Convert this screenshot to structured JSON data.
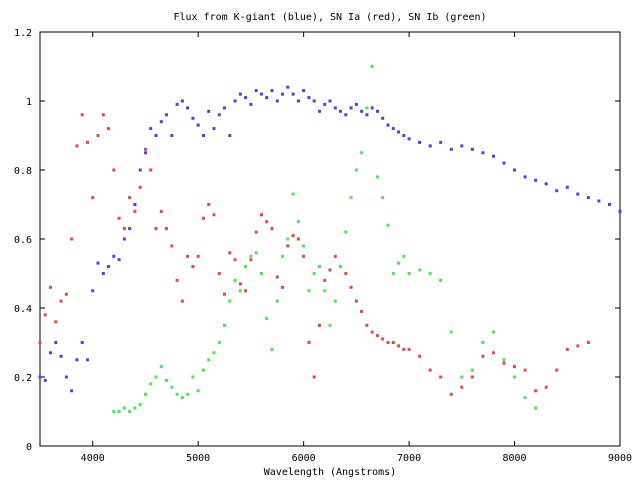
{
  "chart_data": {
    "type": "scatter",
    "title": "Flux from K-giant (blue), SN Ia (red), SN Ib (green)",
    "xlabel": "Wavelength (Angstroms)",
    "ylabel": "",
    "xlim": [
      3500,
      9000
    ],
    "ylim": [
      0,
      1.2
    ],
    "x_ticks": [
      4000,
      5000,
      6000,
      7000,
      8000,
      9000
    ],
    "x_tick_labels": [
      "4000",
      "5000",
      "6000",
      "7000",
      "8000",
      "9000"
    ],
    "y_ticks": [
      0,
      0.2,
      0.4,
      0.6,
      0.8,
      1,
      1.2
    ],
    "y_tick_labels": [
      "0",
      "0.2",
      "0.4",
      "0.6",
      "0.8",
      "1",
      "1.2"
    ],
    "grid": false,
    "legend": "none",
    "series": [
      {
        "color": "#4444ee",
        "x": [
          3500,
          3550,
          3600,
          3650,
          3700,
          3750,
          3800,
          3850,
          3900,
          3950,
          4000,
          4050,
          4100,
          4150,
          4200,
          4250,
          4300,
          4350,
          4400,
          4450,
          4500,
          4550,
          4600,
          4650,
          4700,
          4750,
          4800,
          4850,
          4900,
          4950,
          5000,
          5050,
          5100,
          5150,
          5200,
          5250,
          5300,
          5350,
          5400,
          5450,
          5500,
          5550,
          5600,
          5650,
          5700,
          5750,
          5800,
          5850,
          5900,
          5950,
          6000,
          6050,
          6100,
          6150,
          6200,
          6250,
          6300,
          6350,
          6400,
          6450,
          6500,
          6550,
          6600,
          6650,
          6700,
          6750,
          6800,
          6850,
          6900,
          6950,
          7000,
          7100,
          7200,
          7300,
          7400,
          7500,
          7600,
          7700,
          7800,
          7900,
          8000,
          8100,
          8200,
          8300,
          8400,
          8500,
          8600,
          8700,
          8800,
          8900,
          9000
        ],
        "y": [
          0.2,
          0.19,
          0.27,
          0.3,
          0.26,
          0.2,
          0.16,
          0.25,
          0.3,
          0.25,
          0.45,
          0.53,
          0.5,
          0.52,
          0.55,
          0.54,
          0.6,
          0.63,
          0.7,
          0.8,
          0.85,
          0.92,
          0.9,
          0.94,
          0.96,
          0.9,
          0.99,
          1.0,
          0.98,
          0.95,
          0.93,
          0.9,
          0.97,
          0.92,
          0.96,
          0.98,
          0.9,
          1.0,
          1.02,
          1.01,
          0.99,
          1.03,
          1.02,
          1.01,
          1.03,
          1.0,
          1.02,
          1.04,
          1.02,
          1.0,
          1.03,
          1.01,
          1.0,
          0.97,
          0.99,
          1.0,
          0.98,
          0.97,
          0.96,
          0.98,
          0.99,
          0.97,
          0.96,
          0.98,
          0.97,
          0.95,
          0.93,
          0.92,
          0.91,
          0.9,
          0.89,
          0.88,
          0.87,
          0.88,
          0.86,
          0.87,
          0.86,
          0.85,
          0.84,
          0.82,
          0.8,
          0.78,
          0.77,
          0.76,
          0.74,
          0.75,
          0.73,
          0.72,
          0.71,
          0.7,
          0.68
        ]
      },
      {
        "color": "#ee4444",
        "x": [
          3500,
          3550,
          3600,
          3650,
          3700,
          3750,
          3800,
          3850,
          3900,
          3950,
          4000,
          4050,
          4100,
          4150,
          4200,
          4250,
          4300,
          4350,
          4400,
          4450,
          4500,
          4550,
          4600,
          4650,
          4700,
          4750,
          4800,
          4850,
          4900,
          4950,
          5000,
          5050,
          5100,
          5150,
          5200,
          5250,
          5300,
          5350,
          5400,
          5450,
          5500,
          5550,
          5600,
          5650,
          5700,
          5750,
          5800,
          5850,
          5900,
          5950,
          6000,
          6050,
          6100,
          6150,
          6200,
          6250,
          6300,
          6350,
          6400,
          6450,
          6500,
          6550,
          6600,
          6650,
          6700,
          6750,
          6800,
          6850,
          6900,
          6950,
          7000,
          7100,
          7200,
          7300,
          7400,
          7500,
          7600,
          7700,
          7800,
          7900,
          8000,
          8100,
          8200,
          8300,
          8400,
          8500,
          8600,
          8700
        ],
        "y": [
          0.3,
          0.38,
          0.46,
          0.36,
          0.42,
          0.44,
          0.6,
          0.87,
          0.96,
          0.88,
          0.72,
          0.9,
          0.96,
          0.92,
          0.8,
          0.66,
          0.63,
          0.72,
          0.68,
          0.75,
          0.86,
          0.8,
          0.63,
          0.68,
          0.63,
          0.58,
          0.48,
          0.42,
          0.55,
          0.52,
          0.55,
          0.66,
          0.7,
          0.67,
          0.5,
          0.44,
          0.56,
          0.54,
          0.47,
          0.45,
          0.54,
          0.62,
          0.67,
          0.65,
          0.63,
          0.49,
          0.46,
          0.58,
          0.61,
          0.6,
          0.55,
          0.3,
          0.2,
          0.35,
          0.48,
          0.51,
          0.55,
          0.52,
          0.5,
          0.46,
          0.42,
          0.39,
          0.35,
          0.33,
          0.32,
          0.31,
          0.3,
          0.3,
          0.29,
          0.28,
          0.28,
          0.26,
          0.22,
          0.2,
          0.15,
          0.17,
          0.2,
          0.26,
          0.27,
          0.24,
          0.23,
          0.22,
          0.16,
          0.17,
          0.22,
          0.28,
          0.29,
          0.3
        ]
      },
      {
        "color": "#44ee44",
        "x": [
          4200,
          4250,
          4300,
          4350,
          4400,
          4450,
          4500,
          4550,
          4600,
          4650,
          4700,
          4750,
          4800,
          4850,
          4900,
          4950,
          5000,
          5050,
          5100,
          5150,
          5200,
          5250,
          5300,
          5350,
          5400,
          5450,
          5500,
          5550,
          5600,
          5650,
          5700,
          5750,
          5800,
          5850,
          5900,
          5950,
          6000,
          6050,
          6100,
          6150,
          6200,
          6250,
          6300,
          6350,
          6400,
          6450,
          6500,
          6550,
          6600,
          6650,
          6700,
          6750,
          6800,
          6850,
          6900,
          6950,
          7000,
          7100,
          7200,
          7300,
          7400,
          7500,
          7600,
          7700,
          7800,
          7900,
          8000,
          8100,
          8200
        ],
        "y": [
          0.1,
          0.1,
          0.11,
          0.1,
          0.11,
          0.12,
          0.15,
          0.18,
          0.2,
          0.23,
          0.19,
          0.17,
          0.15,
          0.14,
          0.15,
          0.2,
          0.16,
          0.22,
          0.25,
          0.27,
          0.3,
          0.35,
          0.42,
          0.48,
          0.45,
          0.52,
          0.55,
          0.56,
          0.5,
          0.37,
          0.28,
          0.42,
          0.55,
          0.6,
          0.73,
          0.65,
          0.58,
          0.45,
          0.5,
          0.52,
          0.45,
          0.35,
          0.42,
          0.52,
          0.62,
          0.72,
          0.8,
          0.85,
          0.98,
          1.1,
          0.78,
          0.72,
          0.64,
          0.5,
          0.53,
          0.55,
          0.5,
          0.51,
          0.5,
          0.48,
          0.33,
          0.2,
          0.22,
          0.3,
          0.33,
          0.25,
          0.2,
          0.14,
          0.11
        ]
      }
    ]
  }
}
